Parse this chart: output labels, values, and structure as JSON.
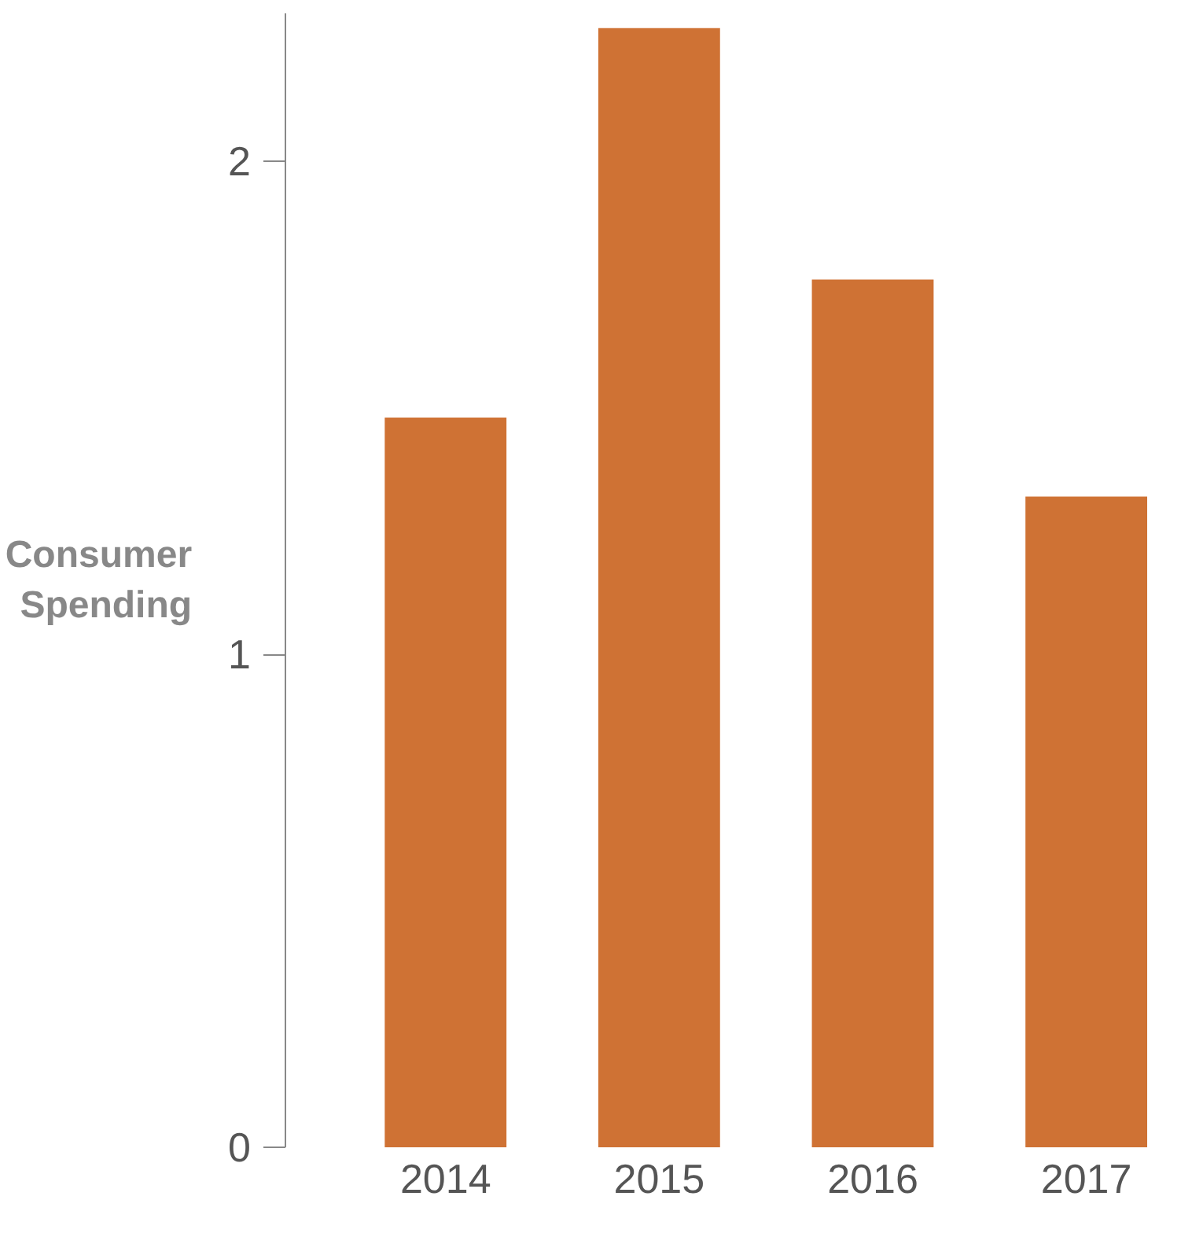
{
  "chart_data": {
    "type": "bar",
    "ylabel": "Consumer\nSpending",
    "categories": [
      "2014",
      "2015",
      "2016",
      "2017"
    ],
    "values": [
      1.48,
      2.27,
      1.76,
      1.32
    ],
    "color": "#cf7234",
    "ylim": [
      0,
      2.3
    ],
    "yticks": [
      0,
      1,
      2
    ],
    "grid": false
  }
}
